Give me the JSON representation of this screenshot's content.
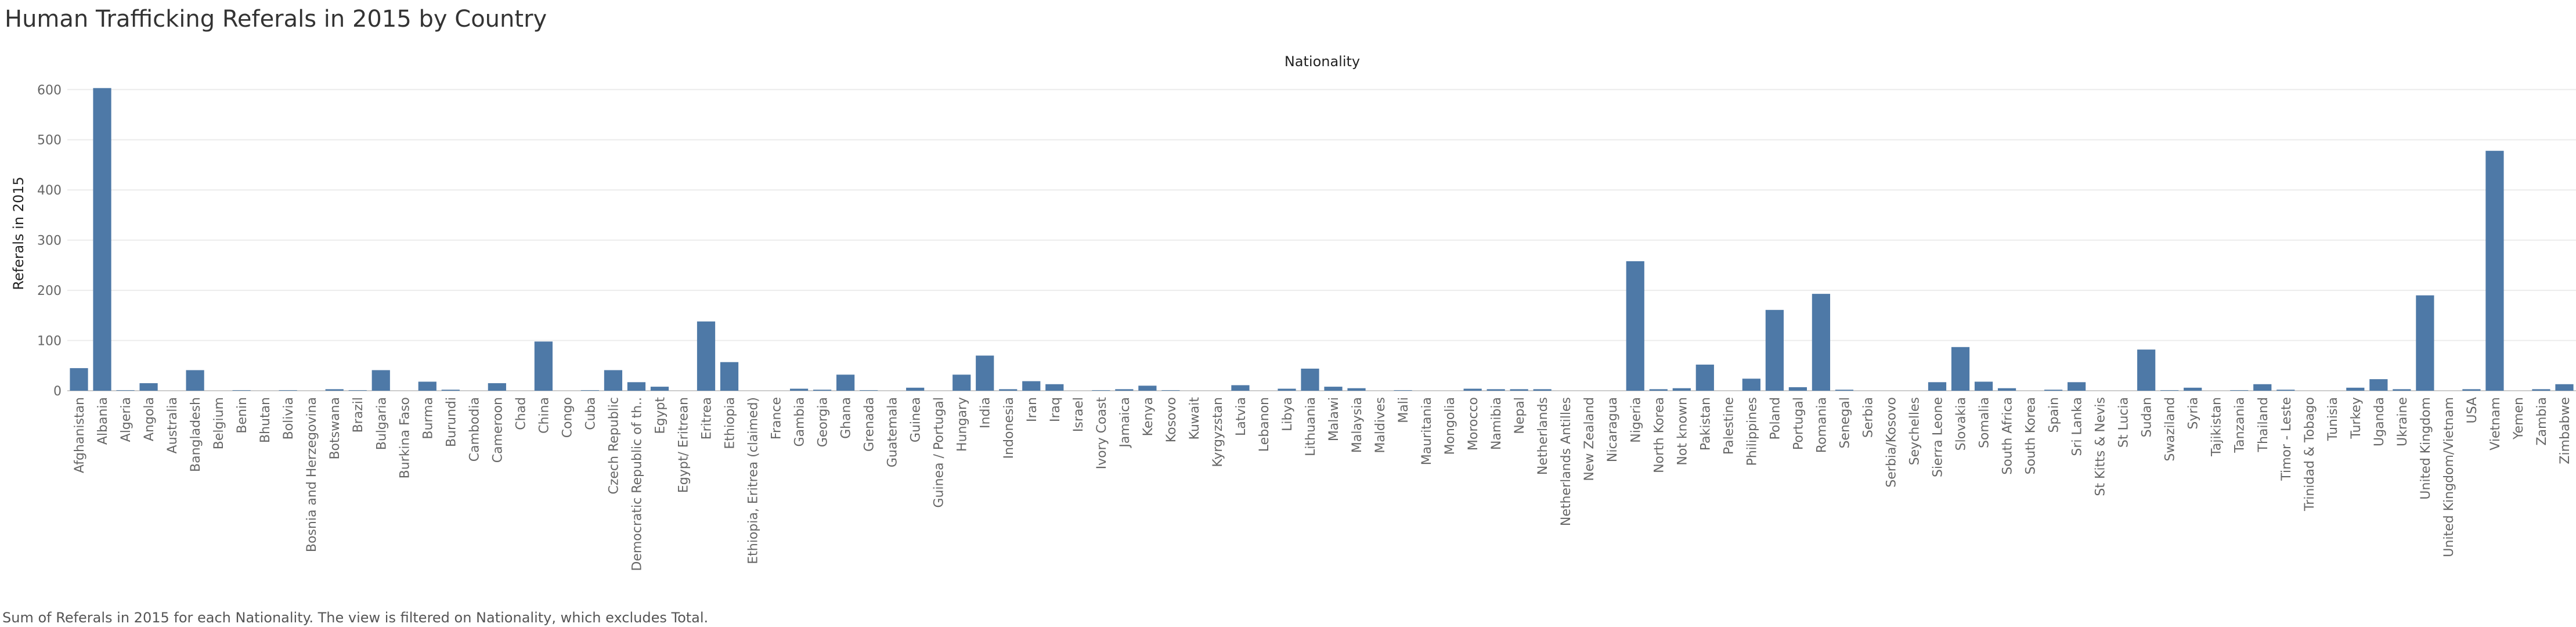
{
  "title": "Human Trafficking Referals in 2015 by Country",
  "caption": "Sum of Referals in 2015 for each Nationality.  The view is filtered on Nationality, which excludes Total.",
  "colors": {
    "bar": "#4e79a7",
    "grid": "#ececec",
    "text": "#666666"
  },
  "chart_data": {
    "type": "bar",
    "title": "Human Trafficking Referals in 2015 by Country",
    "xlabel": "Nationality",
    "ylabel": "Referals in 2015",
    "ylim": [
      0,
      620
    ],
    "yticks": [
      0,
      100,
      200,
      300,
      400,
      500,
      600
    ],
    "grid": true,
    "categories": [
      "Afghanistan",
      "Albania",
      "Algeria",
      "Angola",
      "Australia",
      "Bangladesh",
      "Belgium",
      "Benin",
      "Bhutan",
      "Bolivia",
      "Bosnia and Herzegovina",
      "Botswana",
      "Brazil",
      "Bulgaria",
      "Burkina Faso",
      "Burma",
      "Burundi",
      "Cambodia",
      "Cameroon",
      "Chad",
      "China",
      "Congo",
      "Cuba",
      "Czech Republic",
      "Democratic Republic of th..",
      "Egypt",
      "Egypt/ Eritrean",
      "Eritrea",
      "Ethiopia",
      "Ethiopia, Eritrea (claimed)",
      "France",
      "Gambia",
      "Georgia",
      "Ghana",
      "Grenada",
      "Guatemala",
      "Guinea",
      "Guinea / Portugal",
      "Hungary",
      "India",
      "Indonesia",
      "Iran",
      "Iraq",
      "Israel",
      "Ivory Coast",
      "Jamaica",
      "Kenya",
      "Kosovo",
      "Kuwait",
      "Kyrgyzstan",
      "Latvia",
      "Lebanon",
      "Libya",
      "Lithuania",
      "Malawi",
      "Malaysia",
      "Maldives",
      "Mali",
      "Mauritania",
      "Mongolia",
      "Morocco",
      "Namibia",
      "Nepal",
      "Netherlands",
      "Netherlands Antilles",
      "New Zealand",
      "Nicaragua",
      "Nigeria",
      "North Korea",
      "Not known",
      "Pakistan",
      "Palestine",
      "Philippines",
      "Poland",
      "Portugal",
      "Romania",
      "Senegal",
      "Serbia",
      "Serbia/Kosovo",
      "Seychelles",
      "Sierra Leone",
      "Slovakia",
      "Somalia",
      "South Africa",
      "South Korea",
      "Spain",
      "Sri Lanka",
      "St Kitts & Nevis",
      "St Lucia",
      "Sudan",
      "Swaziland",
      "Syria",
      "Tajikistan",
      "Tanzania",
      "Thailand",
      "Timor - Leste",
      "Trinidad & Tobago",
      "Tunisia",
      "Turkey",
      "Uganda",
      "Ukraine",
      "United Kingdom",
      "United Kingdom/Vietnam",
      "USA",
      "Vietnam",
      "Yemen",
      "Zambia",
      "Zimbabwe"
    ],
    "values": [
      45,
      603,
      1,
      15,
      0,
      41,
      0,
      1,
      0,
      1,
      0,
      3,
      1,
      41,
      0,
      18,
      2,
      0,
      15,
      0,
      98,
      0,
      1,
      41,
      17,
      8,
      0,
      138,
      57,
      0,
      0,
      4,
      2,
      32,
      1,
      0,
      6,
      0,
      32,
      70,
      3,
      19,
      13,
      0,
      1,
      3,
      10,
      1,
      0,
      0,
      11,
      0,
      4,
      44,
      8,
      5,
      0,
      1,
      0,
      0,
      4,
      3,
      3,
      3,
      0,
      0,
      0,
      258,
      3,
      5,
      52,
      0,
      24,
      161,
      7,
      193,
      2,
      0,
      0,
      0,
      17,
      87,
      18,
      5,
      0,
      2,
      17,
      0,
      0,
      82,
      1,
      6,
      0,
      1,
      13,
      2,
      0,
      0,
      6,
      23,
      3,
      190,
      0,
      3,
      478,
      0,
      3,
      13
    ]
  }
}
